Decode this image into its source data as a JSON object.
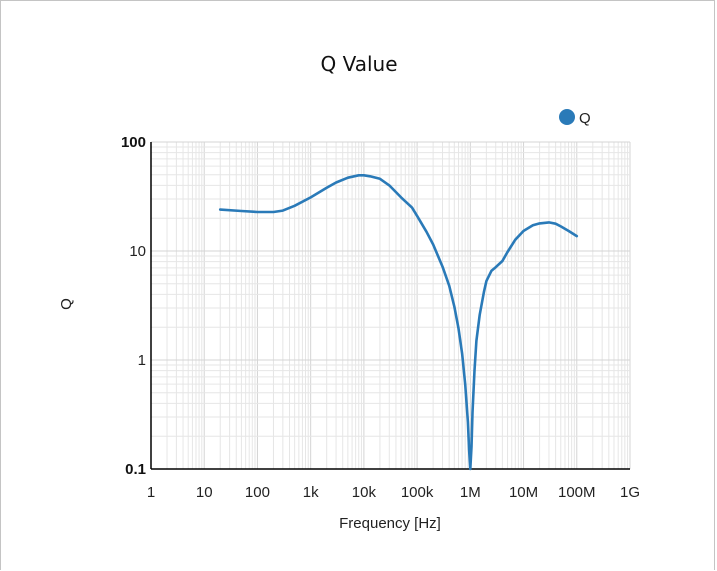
{
  "chart_data": {
    "type": "line",
    "title": "Q Value",
    "xlabel": "Frequency [Hz]",
    "ylabel": "Q",
    "x_scale": "log",
    "y_scale": "log",
    "xlim": [
      1,
      1000000000
    ],
    "ylim": [
      0.1,
      100
    ],
    "x_ticks": [
      {
        "value": 1,
        "label": "1"
      },
      {
        "value": 10,
        "label": "10"
      },
      {
        "value": 100,
        "label": "100"
      },
      {
        "value": 1000,
        "label": "1k"
      },
      {
        "value": 10000,
        "label": "10k"
      },
      {
        "value": 100000,
        "label": "100k"
      },
      {
        "value": 1000000,
        "label": "1M"
      },
      {
        "value": 10000000,
        "label": "10M"
      },
      {
        "value": 100000000,
        "label": "100M"
      },
      {
        "value": 1000000000,
        "label": "1G"
      }
    ],
    "y_ticks": [
      {
        "value": 0.1,
        "label": "0.1",
        "bold": true
      },
      {
        "value": 1,
        "label": "1",
        "bold": false
      },
      {
        "value": 10,
        "label": "10",
        "bold": false
      },
      {
        "value": 100,
        "label": "100",
        "bold": true
      }
    ],
    "grid": true,
    "legend_position": "top-right",
    "series": [
      {
        "name": "Q",
        "color": "#2a7ab8",
        "x": [
          20,
          50,
          100,
          200,
          300,
          500,
          1000,
          2000,
          3000,
          5000,
          8000,
          10000,
          13000,
          20000,
          30000,
          50000,
          80000,
          100000,
          150000,
          200000,
          300000,
          400000,
          500000,
          600000,
          700000,
          800000,
          900000,
          950000,
          1000000,
          1050000,
          1100000,
          1200000,
          1300000,
          1500000,
          1800000,
          2000000,
          2500000,
          3000000,
          4000000,
          5000000,
          7000000,
          10000000,
          15000000,
          20000000,
          30000000,
          40000000,
          50000000,
          70000000,
          100000000
        ],
        "y": [
          24,
          23.3,
          22.8,
          22.8,
          23.5,
          26,
          31,
          38,
          42.5,
          47,
          49.5,
          49.5,
          48.5,
          46,
          40,
          31,
          25,
          21,
          15,
          11.5,
          7.2,
          4.8,
          3.1,
          1.95,
          1.15,
          0.6,
          0.27,
          0.15,
          0.1,
          0.16,
          0.33,
          0.8,
          1.5,
          2.6,
          4.2,
          5.3,
          6.6,
          7.1,
          8.1,
          9.8,
          12.7,
          15.3,
          17.2,
          17.9,
          18.3,
          17.8,
          16.8,
          15.3,
          13.7
        ]
      }
    ]
  }
}
